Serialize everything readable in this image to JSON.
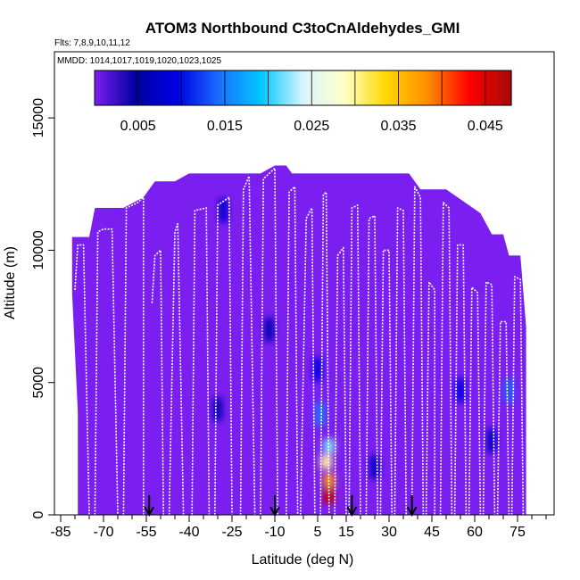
{
  "chart_data": {
    "type": "heatmap",
    "title": "ATOM3 Northbound C3toCnAldehydes_GMI",
    "flights_text": "Flts: 7,8,9,10,11,12",
    "dates_text": "MMDD: 1014,1017,1019,1020,1023,1025",
    "xlabel": "Latitude (deg N)",
    "ylabel": "Altitude (m)",
    "xlim": [
      -85,
      85
    ],
    "ylim": [
      0,
      17500
    ],
    "x_ticks": [
      -85,
      -70,
      -55,
      -40,
      -25,
      -10,
      5,
      15,
      30,
      45,
      60,
      75
    ],
    "x_minor_ticks": [
      -80,
      -75,
      -65,
      -60,
      -50,
      -45,
      -35,
      -30,
      -20,
      -15,
      -5,
      0,
      10,
      20,
      25,
      35,
      40,
      50,
      55,
      65,
      70,
      80,
      85
    ],
    "y_ticks": [
      0,
      5000,
      10000,
      15000
    ],
    "colorbar": {
      "range": [
        0,
        0.048
      ],
      "ticks": [
        "0.005",
        "0.015",
        "0.025",
        "0.035",
        "0.045"
      ],
      "tick_values": [
        0.005,
        0.015,
        0.025,
        0.035,
        0.045
      ],
      "boundaries": [
        0.01,
        0.02,
        0.03,
        0.04
      ],
      "colors": [
        "#7b1ff0",
        "#0000a0",
        "#0000e6",
        "#1a70ff",
        "#00c8ff",
        "#d8f4ff",
        "#ffffc8",
        "#ffd700",
        "#ff8c00",
        "#ff0000",
        "#a50a0a"
      ]
    },
    "domain_envelope": [
      [
        -81,
        10500
      ],
      [
        -75,
        10500
      ],
      [
        -73,
        11600
      ],
      [
        -63,
        11600
      ],
      [
        -56,
        12000
      ],
      [
        -52,
        12600
      ],
      [
        -45,
        12600
      ],
      [
        -40,
        12900
      ],
      [
        -28,
        12900
      ],
      [
        -15,
        12900
      ],
      [
        -10,
        13200
      ],
      [
        -6,
        13200
      ],
      [
        -4,
        12900
      ],
      [
        26,
        12900
      ],
      [
        37,
        12900
      ],
      [
        41,
        12300
      ],
      [
        50,
        12300
      ],
      [
        62,
        11400
      ],
      [
        66,
        10600
      ],
      [
        70,
        10600
      ],
      [
        72,
        9800
      ],
      [
        76,
        9800
      ],
      [
        78,
        7100
      ],
      [
        78,
        0
      ],
      [
        -79,
        0
      ],
      [
        -79,
        3900
      ],
      [
        -81,
        8400
      ]
    ],
    "enhancements": [
      {
        "lat": 9,
        "alt": 700,
        "value": 0.046
      },
      {
        "lat": 9,
        "alt": 1300,
        "value": 0.038
      },
      {
        "lat": 8,
        "alt": 2000,
        "value": 0.03
      },
      {
        "lat": 9,
        "alt": 2600,
        "value": 0.022
      },
      {
        "lat": 6,
        "alt": 3800,
        "value": 0.015
      },
      {
        "lat": 5,
        "alt": 5500,
        "value": 0.009
      },
      {
        "lat": -28,
        "alt": 11500,
        "value": 0.008
      },
      {
        "lat": -30,
        "alt": 4000,
        "value": 0.006
      },
      {
        "lat": -12,
        "alt": 7000,
        "value": 0.006
      },
      {
        "lat": 25,
        "alt": 1800,
        "value": 0.007
      },
      {
        "lat": 55,
        "alt": 4700,
        "value": 0.009
      },
      {
        "lat": 72,
        "alt": 4700,
        "value": 0.014
      },
      {
        "lat": 66,
        "alt": 2800,
        "value": 0.007
      }
    ],
    "flight_tracks": [
      [
        [
          -80,
          8500
        ],
        [
          -79,
          10200
        ],
        [
          -77,
          10200
        ],
        [
          -75,
          0
        ]
      ],
      [
        [
          -73,
          0
        ],
        [
          -72,
          10700
        ],
        [
          -70,
          10800
        ],
        [
          -67,
          10800
        ],
        [
          -65,
          0
        ]
      ],
      [
        [
          -63,
          0
        ],
        [
          -62,
          11600
        ],
        [
          -58,
          11800
        ],
        [
          -56,
          12000
        ],
        [
          -56,
          0
        ]
      ],
      [
        [
          -53,
          8000
        ],
        [
          -52,
          9800
        ],
        [
          -50,
          10000
        ],
        [
          -49,
          0
        ]
      ],
      [
        [
          -47,
          0
        ],
        [
          -45,
          10700
        ],
        [
          -44,
          11000
        ],
        [
          -42,
          0
        ]
      ],
      [
        [
          -39,
          0
        ],
        [
          -38,
          11500
        ],
        [
          -34,
          11600
        ],
        [
          -33,
          0
        ]
      ],
      [
        [
          -31,
          0
        ],
        [
          -30,
          11700
        ],
        [
          -26,
          12000
        ],
        [
          -25,
          0
        ]
      ],
      [
        [
          -22,
          0
        ],
        [
          -21,
          12300
        ],
        [
          -19,
          12800
        ],
        [
          -17,
          0
        ]
      ],
      [
        [
          -15,
          0
        ],
        [
          -14,
          12700
        ],
        [
          -10,
          13100
        ],
        [
          -9,
          0
        ]
      ],
      [
        [
          -6,
          0
        ],
        [
          -5,
          12200
        ],
        [
          -3,
          12400
        ],
        [
          -2,
          0
        ]
      ],
      [
        [
          -1,
          0
        ],
        [
          1,
          11200
        ],
        [
          3,
          11600
        ],
        [
          4,
          0
        ]
      ],
      [
        [
          6,
          0
        ],
        [
          7,
          12100
        ],
        [
          8,
          12200
        ],
        [
          9,
          0
        ]
      ],
      [
        [
          11,
          0
        ],
        [
          12,
          9800
        ],
        [
          14,
          10100
        ],
        [
          15,
          0
        ]
      ],
      [
        [
          16,
          0
        ],
        [
          17,
          11600
        ],
        [
          19,
          11700
        ],
        [
          20,
          0
        ]
      ],
      [
        [
          22,
          0
        ],
        [
          23,
          11200
        ],
        [
          25,
          11300
        ],
        [
          26,
          0
        ]
      ],
      [
        [
          27,
          0
        ],
        [
          28,
          10000
        ],
        [
          30,
          10000
        ],
        [
          31,
          0
        ]
      ],
      [
        [
          32,
          0
        ],
        [
          33,
          11600
        ],
        [
          35,
          11500
        ],
        [
          36,
          0
        ]
      ],
      [
        [
          38,
          0
        ],
        [
          39,
          12400
        ],
        [
          41,
          12000
        ],
        [
          42,
          0
        ]
      ],
      [
        [
          43,
          0
        ],
        [
          44,
          8800
        ],
        [
          46,
          8500
        ],
        [
          46,
          0
        ]
      ],
      [
        [
          48,
          0
        ],
        [
          49,
          11800
        ],
        [
          51,
          11600
        ],
        [
          52,
          0
        ]
      ],
      [
        [
          53,
          0
        ],
        [
          54,
          10200
        ],
        [
          56,
          10200
        ],
        [
          57,
          0
        ]
      ],
      [
        [
          58,
          0
        ],
        [
          59,
          8600
        ],
        [
          61,
          8400
        ],
        [
          62,
          0
        ]
      ],
      [
        [
          63,
          0
        ],
        [
          64,
          8800
        ],
        [
          66,
          8700
        ],
        [
          67,
          0
        ]
      ],
      [
        [
          68,
          0
        ],
        [
          69,
          7300
        ],
        [
          71,
          7300
        ],
        [
          72,
          0
        ]
      ],
      [
        [
          73,
          0
        ],
        [
          74,
          9000
        ],
        [
          76,
          8900
        ],
        [
          77,
          0
        ]
      ]
    ],
    "arrow_latitudes": [
      -54,
      -10,
      17,
      38
    ]
  }
}
